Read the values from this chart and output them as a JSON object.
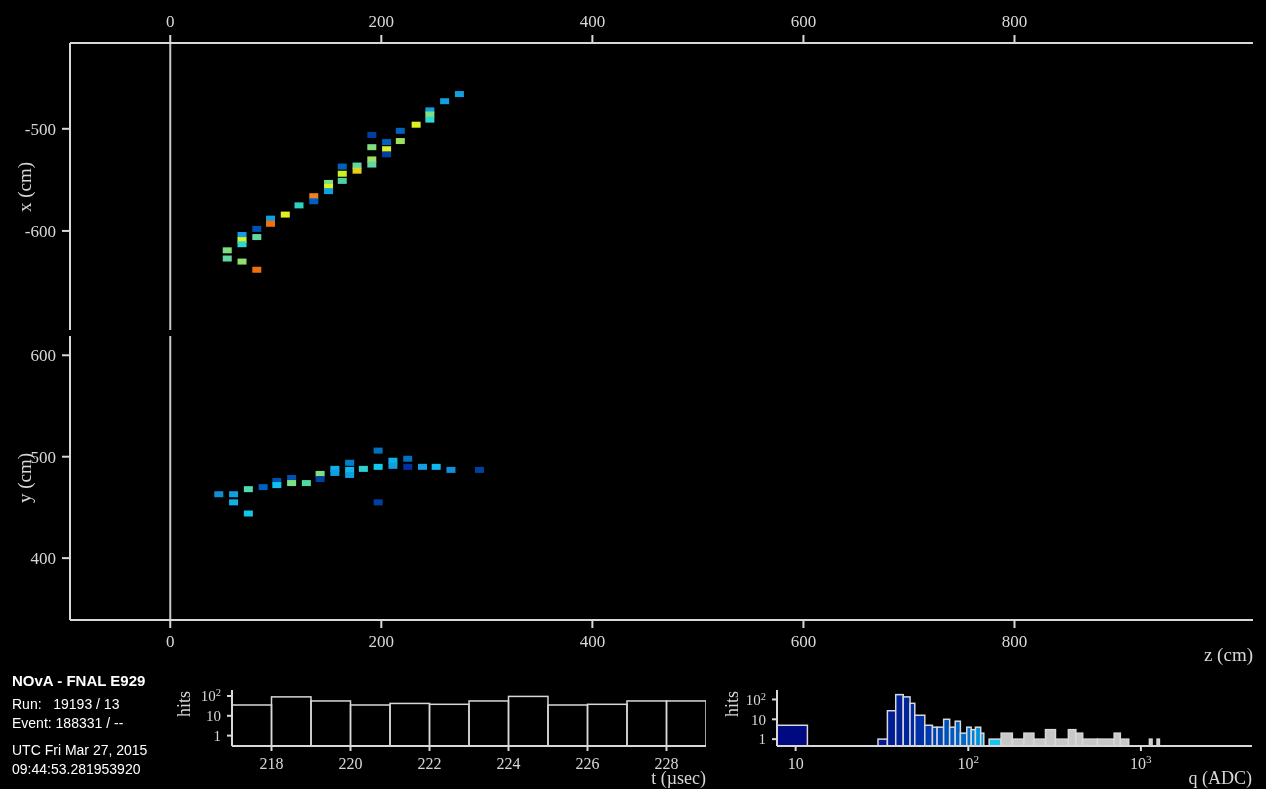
{
  "chart_data": [
    {
      "type": "scatter",
      "ylabel": "x (cm)",
      "marker": "square",
      "xlim": [
        -95,
        1026
      ],
      "xticks": [
        0,
        200,
        400,
        600,
        800
      ],
      "ylim": [
        -697,
        -416
      ],
      "yticks": [
        -600,
        -500
      ],
      "x": [
        54,
        54,
        68,
        82,
        68,
        68,
        68,
        82,
        82,
        95,
        95,
        109,
        122,
        136,
        136,
        150,
        150,
        150,
        163,
        163,
        163,
        177,
        177,
        191,
        191,
        191,
        191,
        205,
        205,
        205,
        218,
        218,
        233,
        246,
        246,
        246,
        260,
        274
      ],
      "values": [
        -619,
        -627,
        -630,
        -638,
        -604,
        -609,
        -613,
        -598,
        -606,
        -588,
        -593,
        -584,
        -575,
        -566,
        -571,
        -553,
        -557,
        -561,
        -537,
        -544,
        -551,
        -536,
        -541,
        -506,
        -518,
        -530,
        -535,
        -513,
        -520,
        -525,
        -502,
        -512,
        -496,
        -482,
        -486,
        -491,
        -473,
        -466
      ],
      "colors": [
        "#80e080",
        "#60d8a0",
        "#90e070",
        "#f07010",
        "#10a0e0",
        "#e0f020",
        "#30d8d0",
        "#0050b0",
        "#60d8a0",
        "#10a0e0",
        "#f07010",
        "#e0f020",
        "#30d0c0",
        "#f08020",
        "#0060c0",
        "#80e080",
        "#e0f020",
        "#10a0e0",
        "#0060c0",
        "#d0f020",
        "#50d0a0",
        "#60d8a0",
        "#e0d020",
        "#0040a0",
        "#80e080",
        "#a0e060",
        "#60d8a0",
        "#0060c0",
        "#e0f020",
        "#0040a0",
        "#0060c0",
        "#a0e060",
        "#e0f020",
        "#10a0e0",
        "#80e080",
        "#30d8d0",
        "#10a0e0",
        "#10a0e0"
      ],
      "ref_lines": [
        {
          "axis": "x",
          "value": 0,
          "color": "#c8c8c8"
        }
      ]
    },
    {
      "type": "scatter",
      "xlabel": "z (cm)",
      "ylabel": "y (cm)",
      "marker": "square",
      "xlim": [
        -95,
        1026
      ],
      "xticks": [
        0,
        200,
        400,
        600,
        800
      ],
      "ylim": [
        339,
        619
      ],
      "yticks": [
        400,
        500,
        600
      ],
      "x": [
        46,
        60,
        60,
        74,
        74,
        88,
        101,
        101,
        115,
        115,
        129,
        142,
        142,
        156,
        156,
        170,
        170,
        170,
        183,
        197,
        197,
        197,
        211,
        211,
        225,
        225,
        239,
        252,
        266,
        293
      ],
      "values": [
        463,
        463,
        455,
        468,
        444,
        470,
        476,
        472,
        479,
        474,
        474,
        483,
        478,
        488,
        484,
        494,
        487,
        482,
        488,
        506,
        490,
        455,
        496,
        491,
        498,
        490,
        490,
        490,
        487,
        487
      ],
      "colors": [
        "#1090d0",
        "#10a0e0",
        "#10b0e8",
        "#50d8b0",
        "#10c8e8",
        "#0060c0",
        "#0050b0",
        "#10c0f0",
        "#0050b0",
        "#80e080",
        "#50d8a0",
        "#80e080",
        "#0040a0",
        "#10b0e8",
        "#10a0e0",
        "#0080c8",
        "#10b8f0",
        "#10a0e0",
        "#30d0d0",
        "#0070c0",
        "#10c8f0",
        "#0040a0",
        "#10b0e8",
        "#10a0e0",
        "#0070c0",
        "#0030a0",
        "#10a0e0",
        "#10b8f0",
        "#1090d8",
        "#0040a0"
      ],
      "ref_lines": [
        {
          "axis": "x",
          "value": 0,
          "color": "#c8c8c8"
        }
      ]
    },
    {
      "type": "other",
      "title": "NOvA - FNAL E929",
      "annotations": [
        "Run:   19193 / 13",
        "Event: 188331 / --",
        "UTC Fri Mar 27, 2015",
        "09:44:53.281953920"
      ]
    },
    {
      "type": "histogram",
      "xlabel": "t (µsec)",
      "ylabel": "hits",
      "log": "y",
      "color": "#d8d8d8",
      "xlim": [
        217,
        229
      ],
      "xticks": [
        218,
        220,
        222,
        224,
        226,
        228
      ],
      "ylim": [
        0.3,
        200
      ],
      "yticks": [
        1,
        10,
        {
          "value": 100,
          "label": "10$^{2}$"
        }
      ],
      "bins": [
        217,
        218,
        219,
        220,
        221,
        222,
        223,
        224,
        225,
        226,
        227,
        228,
        229
      ],
      "values": [
        35,
        90,
        56,
        35,
        42,
        38,
        56,
        95,
        35,
        38,
        56,
        56
      ]
    },
    {
      "type": "histogram",
      "xlabel": "q (ADC)",
      "ylabel": "hits",
      "log": "xy",
      "color": "#d8d8d8",
      "xlim": [
        7.8,
        4400
      ],
      "xticks": [
        10,
        {
          "value": 100,
          "label": "10$^{2}$"
        },
        {
          "value": 1000,
          "label": "10$^{3}$"
        }
      ],
      "ylim": [
        0.45,
        300
      ],
      "yticks": [
        1,
        10,
        {
          "value": 100,
          "label": "10$^{2}$"
        }
      ],
      "bins": [
        7.8,
        11.7,
        30,
        34,
        38,
        42,
        46,
        49,
        56,
        62,
        66,
        72,
        78,
        84,
        90,
        98,
        104,
        110,
        118,
        123,
        132,
        155,
        180,
        210,
        240,
        280,
        320,
        380,
        420,
        460,
        560,
        700,
        760,
        850,
        1120,
        1160,
        1240,
        1280
      ],
      "values": [
        5,
        null,
        1,
        27,
        175,
        135,
        64,
        16,
        5,
        4,
        4,
        10,
        4,
        8,
        2,
        4,
        3,
        4,
        2,
        null,
        1,
        2,
        1,
        2,
        1,
        3,
        1,
        3,
        2,
        1,
        1,
        2,
        1,
        null,
        1,
        null,
        1
      ],
      "colors": [
        "#000a80",
        null,
        "#001890",
        "#001c94",
        "#002098",
        "#00249c",
        "#0028a0",
        "#0030a8",
        "#0038b0",
        "#0040b4",
        "#0048b8",
        "#0050bc",
        "#0058c0",
        "#0060c4",
        "#0068c8",
        "#0070cc",
        "#0080d4",
        "#0090dc",
        "#00a0e4",
        null,
        "#10c8f0",
        "#c8c8c8",
        "#c8c8c8",
        "#c8c8c8",
        "#c8c8c8",
        "#c8c8c8",
        "#c8c8c8",
        "#c8c8c8",
        "#c8c8c8",
        "#c8c8c8",
        "#c8c8c8",
        "#c8c8c8",
        "#c8c8c8",
        null,
        "#c8c8c8",
        null,
        "#c8c8c8"
      ]
    }
  ]
}
